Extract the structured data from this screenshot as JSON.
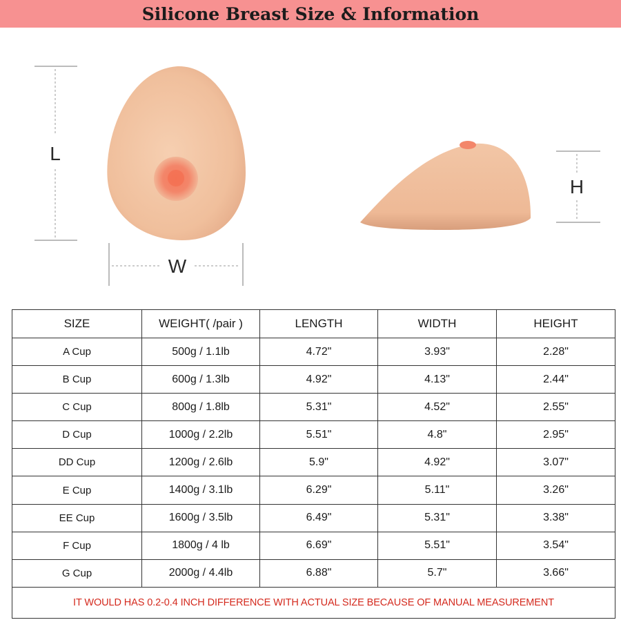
{
  "header": {
    "title": "Silicone Breast Size & Information"
  },
  "diagram": {
    "length_label": "L",
    "width_label": "W",
    "height_label": "H",
    "skin_color": "#f2c4a5",
    "nipple_color": "#f3866a"
  },
  "table": {
    "headers": [
      "SIZE",
      "WEIGHT( /pair )",
      "LENGTH",
      "WIDTH",
      "HEIGHT"
    ],
    "rows": [
      [
        "A Cup",
        "500g / 1.1lb",
        "4.72\"",
        "3.93\"",
        "2.28\""
      ],
      [
        "B Cup",
        "600g / 1.3lb",
        "4.92\"",
        "4.13\"",
        "2.44\""
      ],
      [
        "C Cup",
        "800g / 1.8lb",
        "5.31\"",
        "4.52\"",
        "2.55\""
      ],
      [
        "D Cup",
        "1000g / 2.2lb",
        "5.51\"",
        "4.8\"",
        "2.95\""
      ],
      [
        "DD Cup",
        "1200g / 2.6lb",
        "5.9\"",
        "4.92\"",
        "3.07\""
      ],
      [
        "E Cup",
        "1400g / 3.1lb",
        "6.29\"",
        "5.11\"",
        "3.26\""
      ],
      [
        "EE Cup",
        "1600g / 3.5lb",
        "6.49\"",
        "5.31\"",
        "3.38\""
      ],
      [
        "F Cup",
        "1800g / 4 lb",
        "6.69\"",
        "5.51\"",
        "3.54\""
      ],
      [
        "G Cup",
        "2000g / 4.4lb",
        "6.88\"",
        "5.7\"",
        "3.66\""
      ]
    ],
    "note": "IT WOULD HAS 0.2-0.4 INCH DIFFERENCE WITH ACTUAL SIZE BECAUSE OF MANUAL MEASUREMENT",
    "note_color": "#d42a1e"
  }
}
